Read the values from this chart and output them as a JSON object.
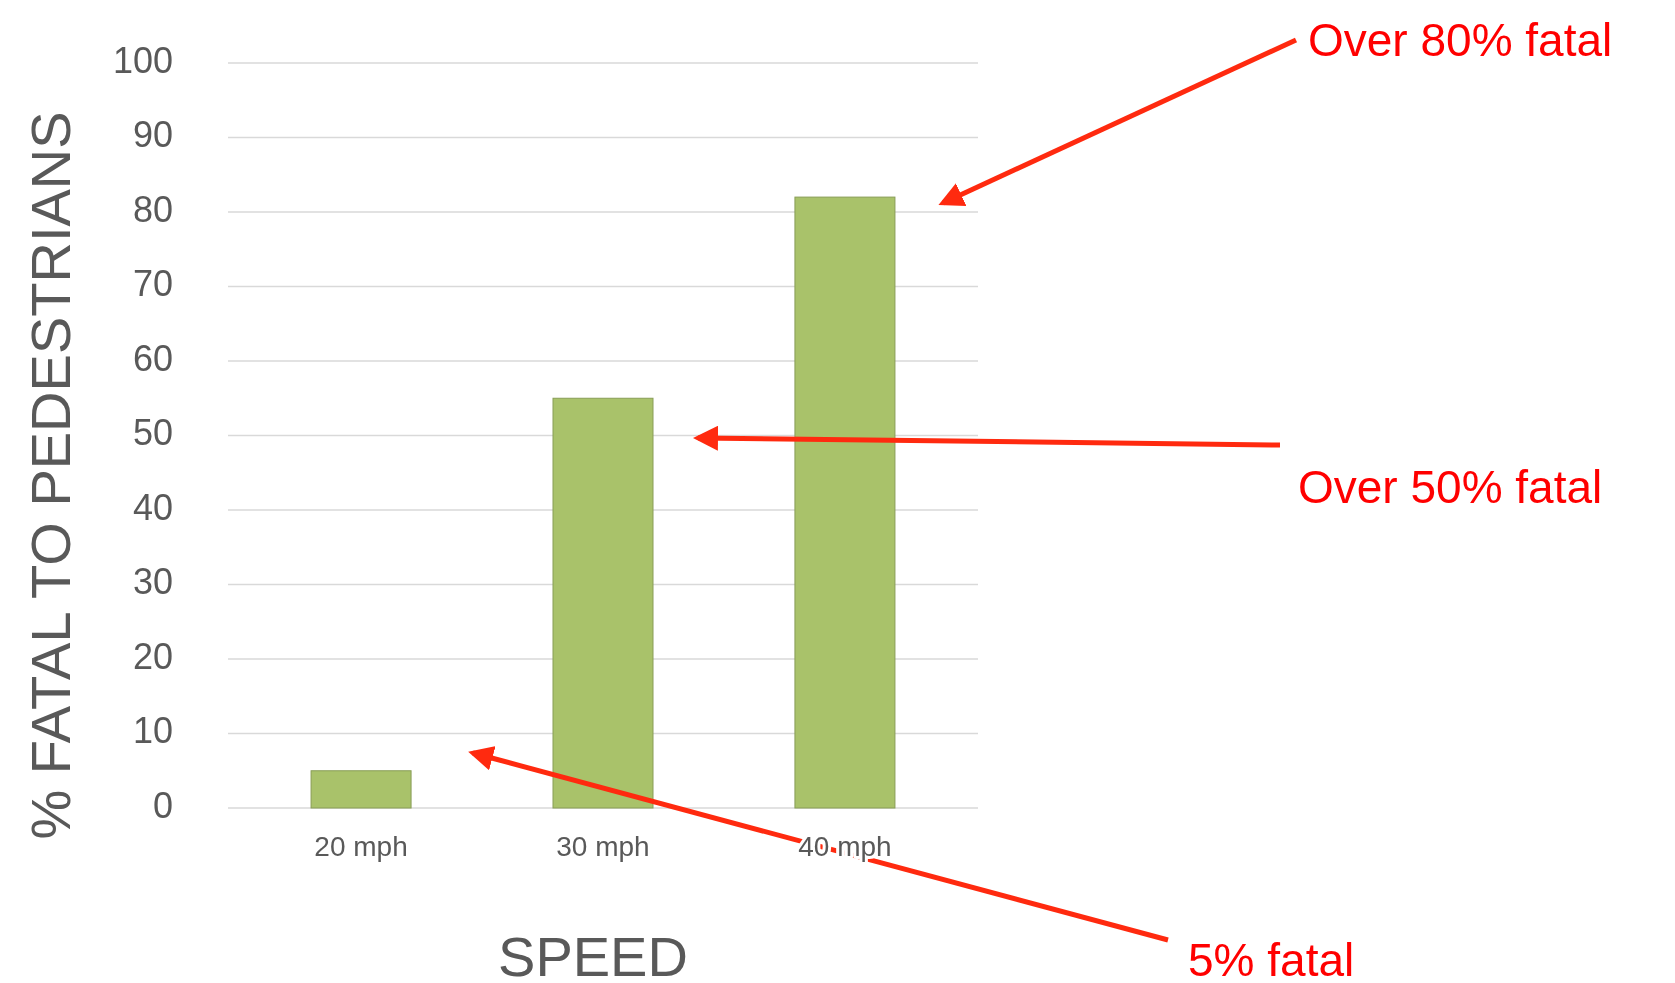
{
  "chart_data": {
    "type": "bar",
    "xlabel": "SPEED",
    "ylabel": "% FATAL TO PEDESTRIANS",
    "categories": [
      "20 mph",
      "30 mph",
      "40 mph"
    ],
    "values": [
      5,
      55,
      82
    ],
    "color": "#a9c26a",
    "ylim": [
      0,
      100
    ],
    "yticks": [
      0,
      10,
      20,
      30,
      40,
      50,
      60,
      70,
      80,
      90,
      100
    ],
    "grid": "y",
    "annotations": [
      "Over 80% fatal",
      "Over 50% fatal",
      "5% fatal"
    ]
  }
}
